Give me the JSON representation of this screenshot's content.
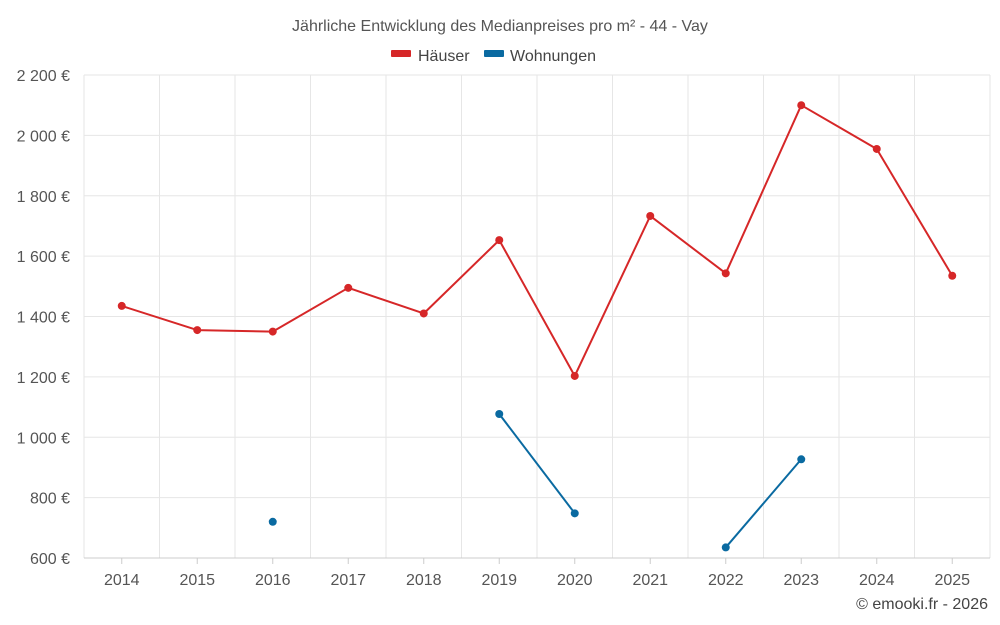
{
  "chart_data": {
    "type": "line",
    "title": "Jährliche Entwicklung des Medianpreises pro m² - 44 - Vay",
    "categories": [
      "2014",
      "2015",
      "2016",
      "2017",
      "2018",
      "2019",
      "2020",
      "2021",
      "2022",
      "2023",
      "2024",
      "2025"
    ],
    "series": [
      {
        "name": "Häuser",
        "color": "#d62728",
        "values": [
          1435,
          1355,
          1350,
          1495,
          1410,
          1653,
          1203,
          1733,
          1543,
          2100,
          1955,
          1535
        ]
      },
      {
        "name": "Wohnungen",
        "color": "#0a6aa1",
        "values": [
          null,
          null,
          720,
          null,
          null,
          1077,
          748,
          null,
          635,
          927,
          null,
          null
        ]
      }
    ],
    "ylim": [
      600,
      2200
    ],
    "yticks": [
      600,
      800,
      1000,
      1200,
      1400,
      1600,
      1800,
      2000,
      2200
    ],
    "ytick_labels": [
      "600 €",
      "800 €",
      "1 000 €",
      "1 200 €",
      "1 400 €",
      "1 600 €",
      "1 800 €",
      "2 000 €",
      "2 200 €"
    ],
    "grid": true,
    "legend_position": "top-center",
    "credit": "© emooki.fr - 2026"
  }
}
